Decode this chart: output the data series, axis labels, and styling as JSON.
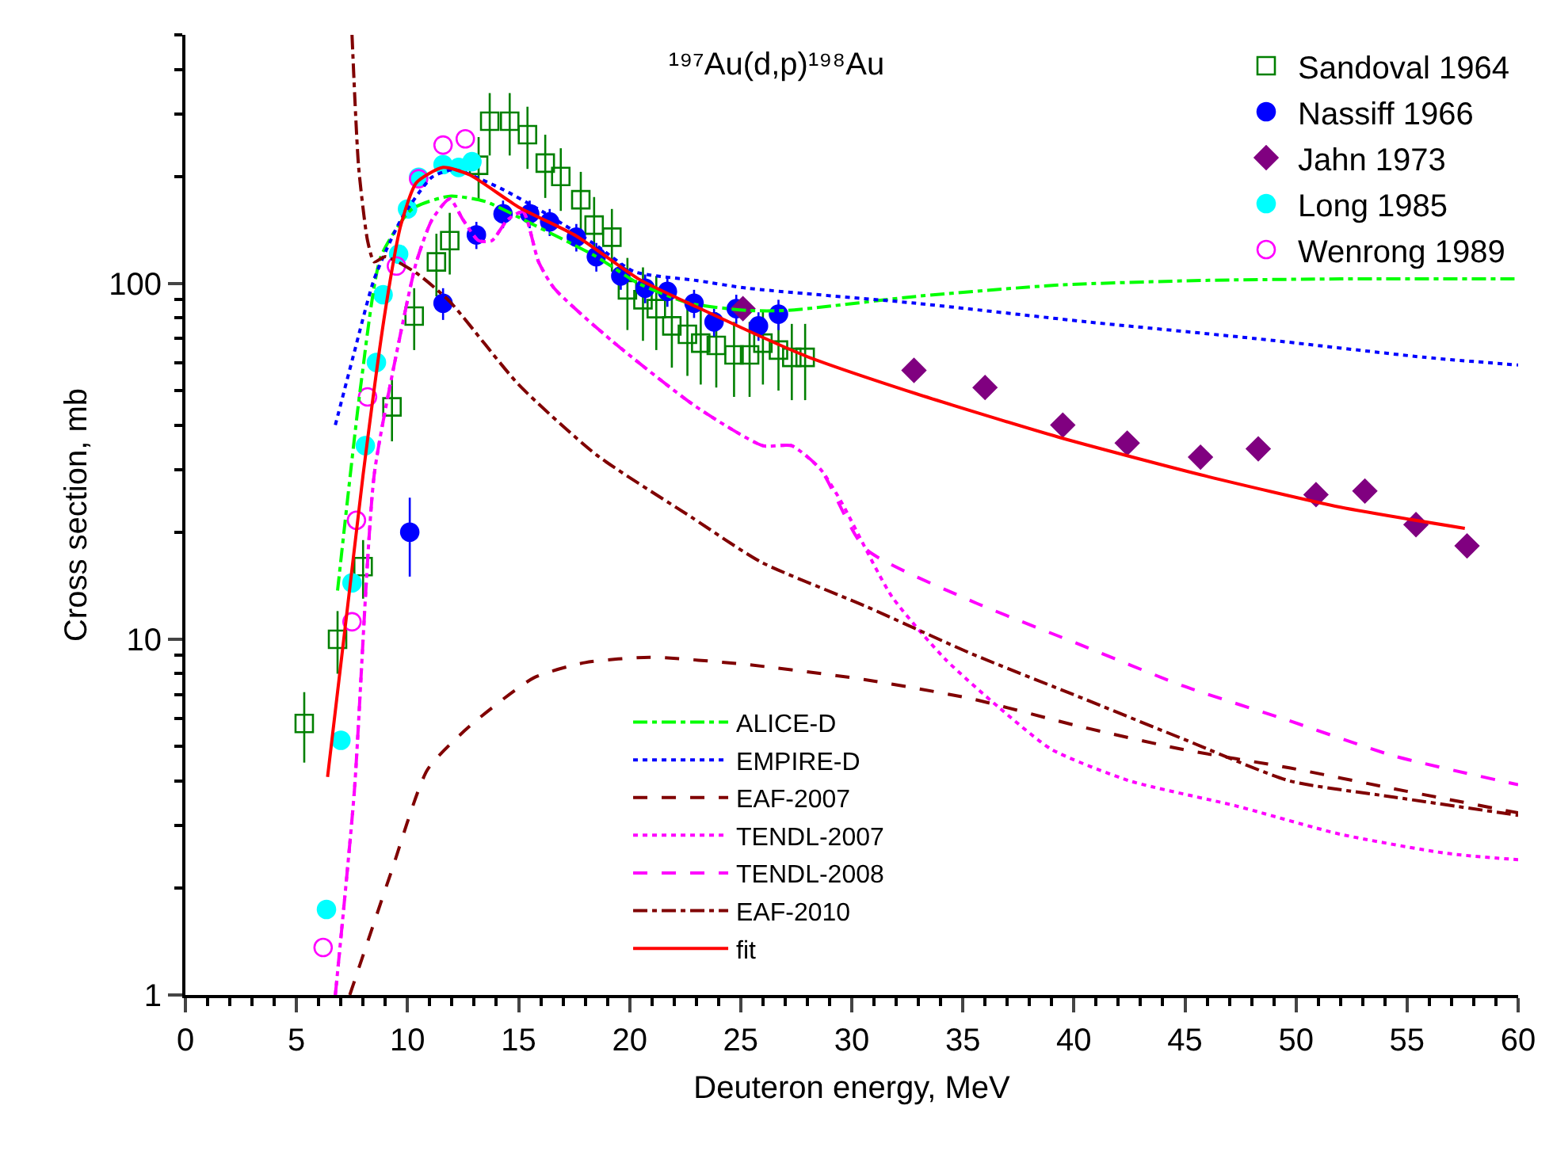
{
  "chart_data": {
    "type": "scatter",
    "title": "¹⁹⁷Au(d,p)¹⁹⁸Au",
    "xlabel": "Deuteron energy, MeV",
    "ylabel": "Cross section, mb",
    "log": "y",
    "legend": "top right",
    "xlim": [
      0,
      60
    ],
    "ylim": [
      1,
      500
    ],
    "xticks": [
      0,
      {
        "value": 1,
        "label": null
      },
      {
        "value": 2,
        "label": null
      },
      {
        "value": 3,
        "label": null
      },
      {
        "value": 4,
        "label": null
      },
      5,
      {
        "value": 6,
        "label": null
      },
      {
        "value": 7,
        "label": null
      },
      {
        "value": 8,
        "label": null
      },
      {
        "value": 9,
        "label": null
      },
      10,
      {
        "value": 11,
        "label": null
      },
      {
        "value": 12,
        "label": null
      },
      {
        "value": 13,
        "label": null
      },
      {
        "value": 14,
        "label": null
      },
      15,
      {
        "value": 16,
        "label": null
      },
      {
        "value": 17,
        "label": null
      },
      {
        "value": 18,
        "label": null
      },
      {
        "value": 19,
        "label": null
      },
      20,
      {
        "value": 21,
        "label": null
      },
      {
        "value": 22,
        "label": null
      },
      {
        "value": 23,
        "label": null
      },
      {
        "value": 24,
        "label": null
      },
      25,
      {
        "value": 26,
        "label": null
      },
      {
        "value": 27,
        "label": null
      },
      {
        "value": 28,
        "label": null
      },
      {
        "value": 29,
        "label": null
      },
      30,
      {
        "value": 31,
        "label": null
      },
      {
        "value": 32,
        "label": null
      },
      {
        "value": 33,
        "label": null
      },
      {
        "value": 34,
        "label": null
      },
      35,
      {
        "value": 36,
        "label": null
      },
      {
        "value": 37,
        "label": null
      },
      {
        "value": 38,
        "label": null
      },
      {
        "value": 39,
        "label": null
      },
      40,
      {
        "value": 41,
        "label": null
      },
      {
        "value": 42,
        "label": null
      },
      {
        "value": 43,
        "label": null
      },
      {
        "value": 44,
        "label": null
      },
      45,
      {
        "value": 46,
        "label": null
      },
      {
        "value": 47,
        "label": null
      },
      {
        "value": 48,
        "label": null
      },
      {
        "value": 49,
        "label": null
      },
      50,
      {
        "value": 51,
        "label": null
      },
      {
        "value": 52,
        "label": null
      },
      {
        "value": 53,
        "label": null
      },
      {
        "value": 54,
        "label": null
      },
      55,
      {
        "value": 56,
        "label": null
      },
      {
        "value": 57,
        "label": null
      },
      {
        "value": 58,
        "label": null
      },
      {
        "value": 59,
        "label": null
      },
      60
    ],
    "yticks": [
      1,
      {
        "value": 2,
        "label": null
      },
      {
        "value": 3,
        "label": null
      },
      {
        "value": 4,
        "label": null
      },
      {
        "value": 5,
        "label": null
      },
      {
        "value": 6,
        "label": null
      },
      {
        "value": 7,
        "label": null
      },
      {
        "value": 8,
        "label": null
      },
      {
        "value": 9,
        "label": null
      },
      10,
      {
        "value": 20,
        "label": null
      },
      {
        "value": 30,
        "label": null
      },
      {
        "value": 40,
        "label": null
      },
      {
        "value": 50,
        "label": null
      },
      {
        "value": 60,
        "label": null
      },
      {
        "value": 70,
        "label": null
      },
      {
        "value": 80,
        "label": null
      },
      {
        "value": 90,
        "label": null
      },
      100,
      {
        "value": 200,
        "label": null
      },
      {
        "value": 300,
        "label": null
      },
      {
        "value": 400,
        "label": null
      },
      {
        "value": 500,
        "label": null
      }
    ],
    "series": [
      {
        "name": "Sandoval 1964",
        "marker": "square-open",
        "color": "#008000",
        "x": [
          5.35,
          6.85,
          8.0,
          9.3,
          10.3,
          11.3,
          11.9,
          13.2,
          13.7,
          14.6,
          15.4,
          16.2,
          16.9,
          17.8,
          18.4,
          19.2,
          19.9,
          20.6,
          21.2,
          21.9,
          22.6,
          23.2,
          23.9,
          24.7,
          25.4,
          26.0,
          26.7,
          27.3,
          27.9
        ],
        "values": [
          5.8,
          10,
          16,
          45,
          81,
          115,
          132,
          215,
          286,
          286,
          262,
          218,
          200,
          172,
          146,
          135,
          96,
          90,
          85,
          76,
          72,
          68,
          67,
          63,
          63,
          68,
          65,
          62,
          62
        ],
        "errors": [
          1.3,
          2,
          3,
          9,
          16,
          23,
          26,
          43,
          57,
          57,
          52,
          44,
          40,
          34,
          29,
          27,
          22,
          21,
          20,
          18,
          17,
          16,
          16,
          15,
          15,
          16,
          15,
          15,
          15
        ]
      },
      {
        "name": "Nassiff 1966",
        "marker": "circle",
        "color": "#0000ff",
        "x": [
          10.1,
          11.6,
          13.1,
          14.3,
          15.5,
          16.4,
          17.6,
          18.5,
          19.6,
          20.7,
          21.7,
          22.9,
          23.8,
          24.8,
          25.8,
          26.7
        ],
        "values": [
          20,
          88,
          137,
          157,
          157,
          149,
          135,
          119,
          105,
          97,
          95,
          88,
          78,
          85,
          76,
          82
        ],
        "errors": [
          5,
          9,
          12,
          14,
          14,
          13,
          12,
          11,
          9,
          9,
          9,
          8,
          7,
          8,
          7,
          8
        ]
      },
      {
        "name": "Jahn 1973",
        "marker": "diamond",
        "color": "#800080",
        "x": [
          25.1,
          32.8,
          36.0,
          39.5,
          42.4,
          45.7,
          48.3,
          50.9,
          53.1,
          55.4,
          57.7
        ],
        "values": [
          85,
          57,
          51,
          40,
          35.6,
          32.5,
          34.3,
          25.5,
          26.1,
          21.0,
          18.3
        ]
      },
      {
        "name": "Long 1985",
        "marker": "circle",
        "color": "#00ffff",
        "x": [
          6.35,
          7.0,
          7.5,
          8.1,
          8.6,
          8.9,
          9.6,
          10.0,
          10.5,
          11.6,
          12.3,
          12.9
        ],
        "values": [
          1.74,
          5.2,
          14.4,
          35,
          60,
          93,
          121,
          162,
          199,
          216,
          212,
          220
        ]
      },
      {
        "name": "Wenrong 1989",
        "marker": "circle-open",
        "color": "#ff00ff",
        "x": [
          6.2,
          7.5,
          7.7,
          8.2,
          9.5,
          10.5,
          11.6,
          12.6
        ],
        "values": [
          1.36,
          11.2,
          21.6,
          48,
          112,
          197,
          245,
          255
        ]
      },
      {
        "name": "ALICE-D",
        "type": "line",
        "line_style": "dashdot",
        "color": "#00ff00",
        "x": [
          6.85,
          7.9,
          8.8,
          10.2,
          11.9,
          13.5,
          15.7,
          18.5,
          20.4,
          22.7,
          25.3,
          27.1,
          32.9,
          39.3,
          45.7,
          52.0,
          60
        ],
        "values": [
          13.7,
          52,
          119,
          162,
          176,
          170,
          146,
          119,
          100,
          88,
          84,
          84,
          92,
          99,
          102,
          103,
          103
        ]
      },
      {
        "name": "EMPIRE-D",
        "type": "line",
        "line_style": "dotted",
        "color": "#0000ff",
        "x": [
          6.75,
          7.6,
          8.5,
          9.7,
          11.1,
          12.1,
          14.2,
          16.1,
          18.5,
          20.2,
          23.0,
          25.3,
          32.9,
          40.6,
          48.2,
          55.8,
          60
        ],
        "values": [
          40,
          64,
          103,
          151,
          199,
          209,
          185,
          159,
          128,
          108,
          102,
          97,
          88,
          78,
          70,
          62,
          59
        ]
      },
      {
        "name": "EAF-2007",
        "type": "line",
        "line_style": "dashed",
        "color": "#800000",
        "x": [
          7.4,
          9.25,
          10.9,
          12.8,
          15.7,
          18.0,
          20.9,
          25.2,
          30.6,
          35.4,
          40.2,
          44.9,
          49.7,
          54.4,
          60
        ],
        "values": [
          1,
          2.2,
          4.3,
          5.7,
          7.8,
          8.6,
          8.9,
          8.5,
          7.7,
          6.8,
          5.7,
          4.9,
          4.35,
          3.8,
          3.25
        ]
      },
      {
        "name": "TENDL-2007",
        "type": "line",
        "line_style": "dotted",
        "color": "#ff00ff",
        "x": [
          6.75,
          7.6,
          8.5,
          9.7,
          10.4,
          11.1,
          11.9,
          12.5,
          13.2,
          13.8,
          14.5,
          15.2,
          15.9,
          16.6,
          19.2,
          23.0,
          26.0,
          27.3,
          28.6,
          29.5,
          31.8,
          34.2,
          36.6,
          39.0,
          42.5,
          47.3,
          52.0,
          56.8,
          60
        ],
        "values": [
          1.0,
          3.7,
          29,
          73,
          115,
          151,
          173,
          151,
          132,
          132,
          151,
          159,
          115,
          97,
          69,
          45,
          35,
          35,
          30,
          24.5,
          13.2,
          8.8,
          6.45,
          4.9,
          4.0,
          3.4,
          2.83,
          2.5,
          2.4
        ]
      },
      {
        "name": "TENDL-2008",
        "type": "line",
        "line_style": "dashed",
        "color": "#ff00ff",
        "x": [
          6.75,
          7.6,
          8.5,
          9.7,
          10.4,
          11.1,
          11.9,
          12.5,
          13.2,
          13.8,
          14.5,
          15.2,
          15.9,
          16.6,
          19.2,
          23.0,
          26.0,
          27.3,
          28.6,
          30.6,
          35.4,
          40.2,
          44.9,
          49.7,
          54.4,
          60
        ],
        "values": [
          1.0,
          3.7,
          29,
          73,
          115,
          151,
          173,
          151,
          132,
          132,
          151,
          159,
          115,
          97,
          69,
          45,
          35,
          35,
          30,
          18,
          12.8,
          9.7,
          7.4,
          5.9,
          4.7,
          3.9
        ]
      },
      {
        "name": "EAF-2010",
        "type": "line",
        "line_style": "dashdot",
        "color": "#800000",
        "x": [
          7.5,
          7.8,
          8.2,
          8.5,
          9.0,
          10.4,
          11.9,
          15.0,
          18.5,
          22.8,
          25.9,
          30.6,
          35.4,
          40.2,
          44.9,
          49.7,
          54.4,
          60
        ],
        "values": [
          500,
          212,
          132,
          115,
          119,
          107,
          89,
          52,
          33,
          22,
          16.5,
          12.4,
          9.1,
          6.9,
          5.25,
          4.0,
          3.6,
          3.2
        ]
      },
      {
        "name": "fit",
        "type": "line",
        "line_style": "solid",
        "color": "#ff0000",
        "x": [
          6.4,
          8.0,
          9.0,
          9.7,
          10.4,
          11.6,
          12.8,
          15.0,
          17.6,
          20.4,
          23.0,
          27.8,
          32.9,
          39.3,
          45.7,
          52.0,
          57.6
        ],
        "values": [
          4.1,
          29,
          84,
          146,
          192,
          212,
          202,
          164,
          136,
          103,
          86,
          63,
          49,
          37,
          29,
          23.5,
          20.5
        ]
      }
    ]
  }
}
